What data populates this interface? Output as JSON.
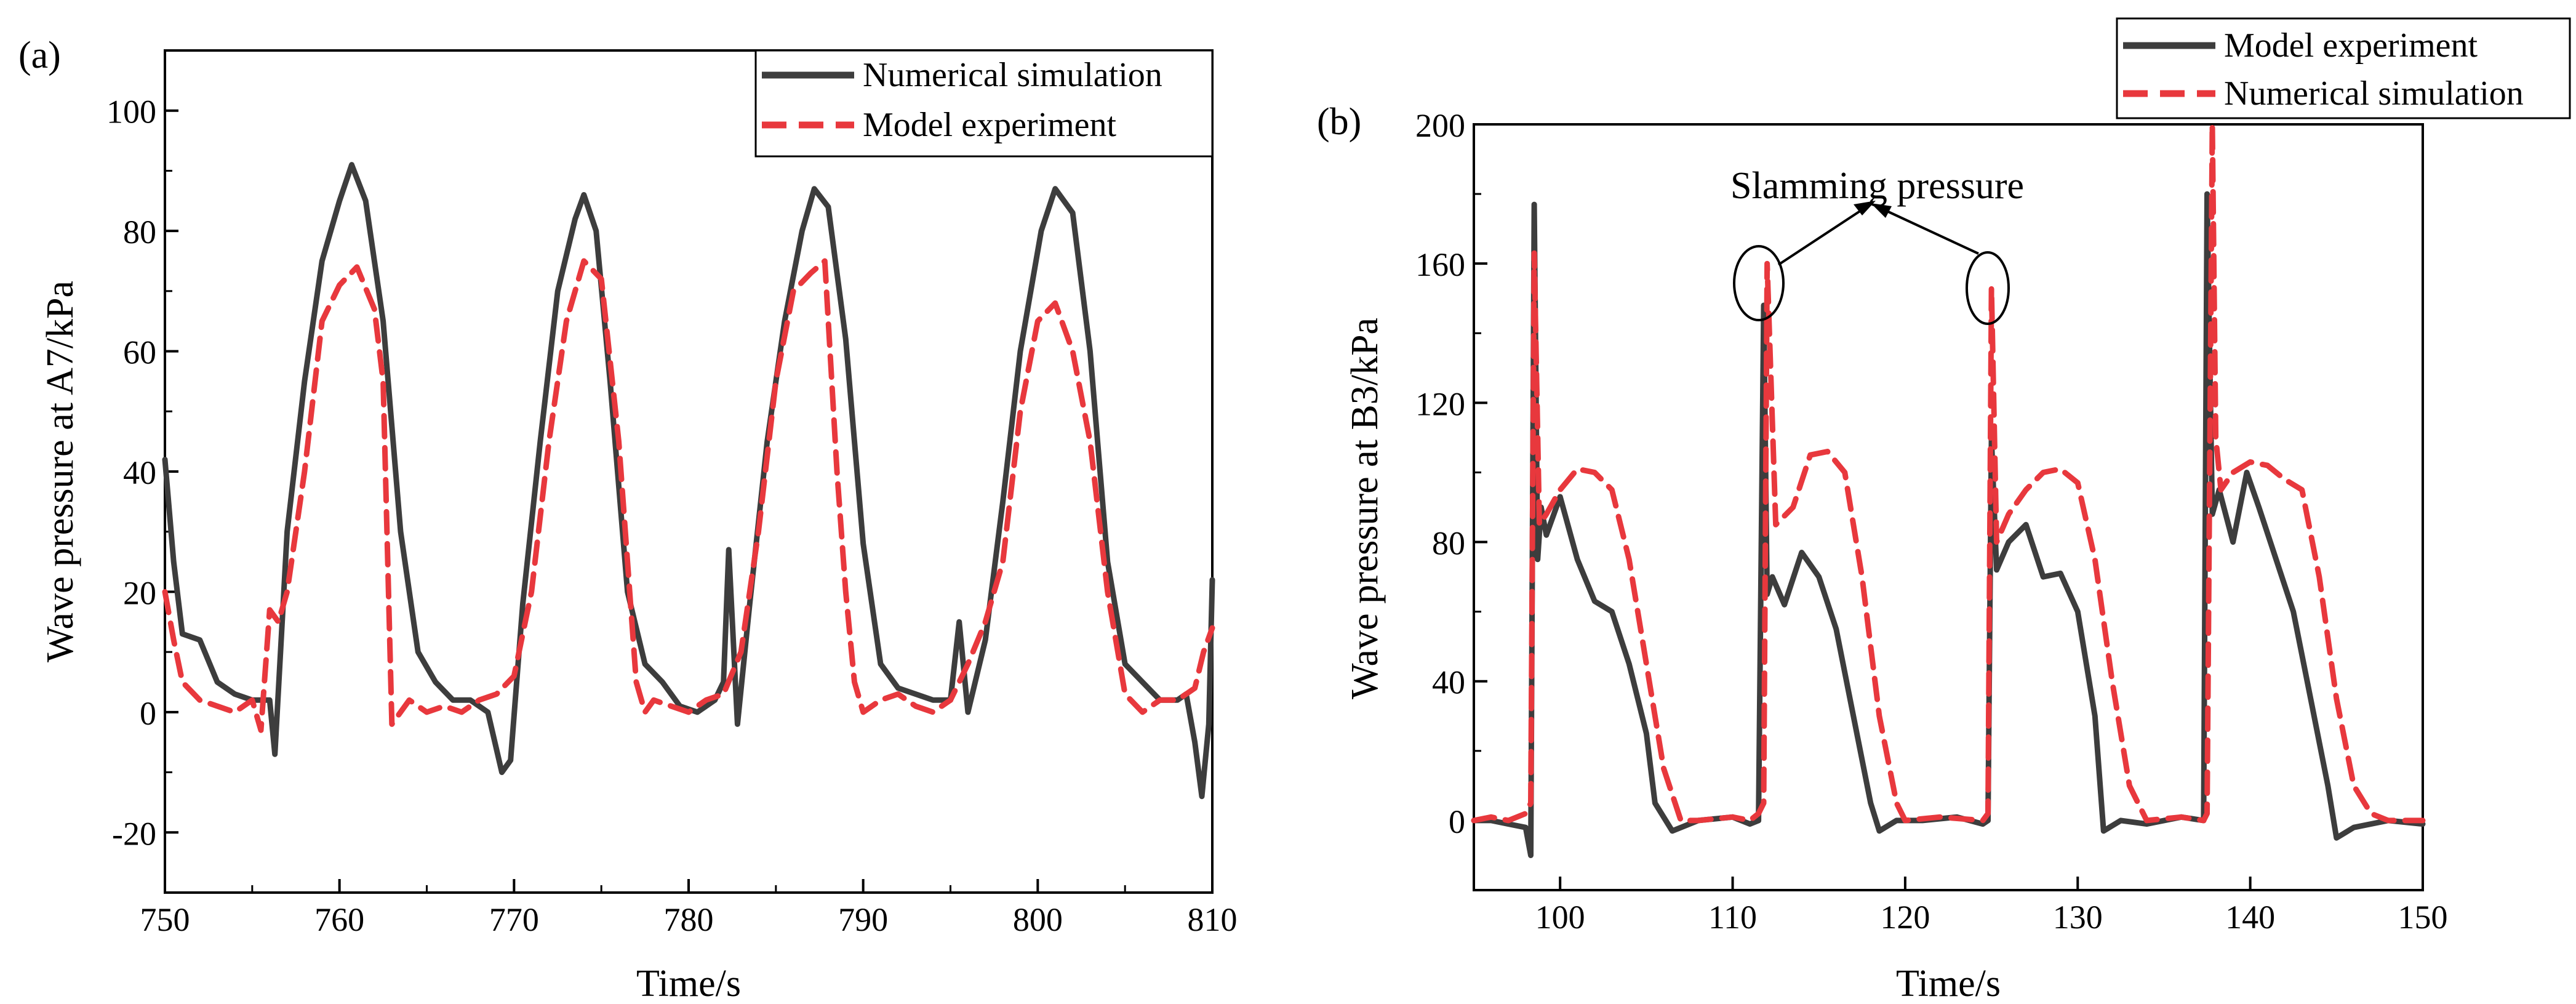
{
  "colors": {
    "dark": "#3d3d3d",
    "red": "#e8383d",
    "axis": "#000000"
  },
  "chart_data": [
    {
      "panel_label": "(a)",
      "type": "line",
      "xlabel": "Time/s",
      "ylabel": "Wave pressure at A7/kPa",
      "xlim": [
        750,
        810
      ],
      "ylim": [
        -30,
        110
      ],
      "xticks": [
        "750",
        "760",
        "770",
        "780",
        "790",
        "800",
        "810"
      ],
      "yticks": [
        "-20",
        "0",
        "20",
        "40",
        "60",
        "80",
        "100"
      ],
      "legend_position": "top-right",
      "series": [
        {
          "name": "Numerical simulation",
          "color": "#3d3d3d",
          "style": "solid",
          "x": [
            750.0,
            750.5,
            751,
            752,
            753,
            754,
            755,
            756,
            756.3,
            757,
            758,
            759,
            760,
            760.7,
            761.5,
            762.5,
            763.5,
            764.5,
            765.5,
            766.5,
            767.5,
            768.5,
            769.3,
            769.8,
            770.5,
            771.5,
            772.5,
            773.5,
            774.0,
            774.7,
            775.5,
            776.5,
            777.5,
            778.5,
            779.5,
            780.5,
            781.5,
            782.0,
            782.3,
            782.8,
            783.5,
            784.5,
            785.5,
            786.5,
            787.2,
            788,
            789,
            790,
            791,
            792,
            793,
            794,
            795,
            795.5,
            796,
            797,
            798,
            799,
            800.2,
            801,
            802,
            803,
            804,
            805,
            806,
            807,
            808,
            808.5,
            809,
            809.4,
            809.8,
            810
          ],
          "y": [
            42,
            25,
            13,
            12,
            5,
            3,
            2,
            2,
            -7,
            30,
            55,
            75,
            85,
            91,
            85,
            65,
            30,
            10,
            5,
            2,
            2,
            0,
            -10,
            -8,
            18,
            45,
            70,
            82,
            86,
            80,
            55,
            20,
            8,
            5,
            1,
            0,
            2,
            5,
            27,
            -2,
            18,
            45,
            65,
            80,
            87,
            84,
            62,
            28,
            8,
            4,
            3,
            2,
            2,
            15,
            0,
            12,
            35,
            60,
            80,
            87,
            83,
            60,
            25,
            8,
            5,
            2,
            2,
            3,
            -5,
            -14,
            -2,
            22
          ]
        },
        {
          "name": "Model experiment",
          "color": "#e8383d",
          "style": "dashed",
          "x": [
            750.0,
            750.5,
            751,
            752,
            753,
            754,
            755,
            755.5,
            756,
            756.5,
            757,
            758,
            759,
            760,
            761,
            762,
            762.5,
            763.0,
            764,
            765,
            766,
            767,
            768,
            769,
            770,
            771,
            772,
            773,
            774,
            775,
            776,
            777,
            777.5,
            778,
            779,
            780,
            781,
            782,
            783,
            784,
            785,
            786,
            787,
            787.8,
            788.5,
            789,
            789.5,
            790,
            791,
            792,
            793,
            794,
            795,
            796,
            797,
            798,
            799,
            800,
            801,
            802,
            803,
            804,
            805,
            806,
            807,
            808,
            809,
            809.5,
            810
          ],
          "y": [
            20,
            12,
            5,
            2,
            1,
            0,
            2,
            -3,
            17,
            15,
            20,
            40,
            65,
            71,
            74,
            67,
            55,
            -2,
            2,
            0,
            1,
            0,
            2,
            3,
            6,
            20,
            45,
            65,
            75,
            72,
            45,
            5,
            0,
            2,
            1,
            0,
            2,
            3,
            10,
            30,
            55,
            70,
            73,
            75,
            40,
            20,
            5,
            0,
            2,
            3,
            1,
            0,
            2,
            8,
            15,
            25,
            50,
            65,
            68,
            60,
            45,
            20,
            3,
            0,
            2,
            2,
            4,
            10,
            14
          ]
        }
      ]
    },
    {
      "panel_label": "(b)",
      "type": "line",
      "xlabel": "Time/s",
      "ylabel": "Wave pressure at B3/kPa",
      "xlim": [
        95,
        150
      ],
      "ylim": [
        -20,
        200
      ],
      "xticks": [
        "100",
        "110",
        "120",
        "130",
        "140",
        "150"
      ],
      "yticks": [
        "0",
        "40",
        "80",
        "120",
        "160",
        "200"
      ],
      "legend_position": "top-right",
      "annotation": "Slamming pressure",
      "series": [
        {
          "name": "Model experiment",
          "color": "#3d3d3d",
          "style": "solid",
          "x": [
            95,
            96,
            97,
            98,
            98.3,
            98.5,
            98.7,
            98.9,
            99.2,
            100,
            101,
            102,
            103,
            104,
            105,
            105.5,
            106.5,
            108,
            110,
            111,
            111.5,
            111.8,
            112.0,
            112.3,
            113,
            114,
            115,
            116,
            117,
            118,
            118.5,
            119.5,
            121,
            123,
            124.5,
            124.8,
            125.0,
            125.3,
            126,
            127,
            128,
            129,
            130,
            131,
            131.5,
            132.5,
            134,
            136,
            137.3,
            137.5,
            137.8,
            138.2,
            139,
            139.8,
            140.5,
            141.5,
            142.5,
            143.5,
            144.5,
            145,
            146,
            148,
            150
          ],
          "y": [
            0,
            0,
            -1,
            -2,
            -10,
            177,
            75,
            90,
            82,
            93,
            75,
            63,
            60,
            45,
            25,
            5,
            -3,
            0,
            1,
            -1,
            0,
            148,
            65,
            70,
            62,
            77,
            70,
            55,
            30,
            5,
            -3,
            0,
            0,
            1,
            -1,
            0,
            110,
            72,
            80,
            85,
            70,
            71,
            60,
            30,
            -3,
            0,
            -1,
            1,
            0,
            180,
            88,
            95,
            80,
            100,
            90,
            75,
            60,
            35,
            10,
            -5,
            -2,
            0,
            -1
          ]
        },
        {
          "name": "Numerical simulation",
          "color": "#e8383d",
          "style": "dashed",
          "x": [
            95,
            96,
            97,
            98,
            98.3,
            98.5,
            98.8,
            99.2,
            100,
            101,
            102,
            103,
            104,
            105,
            106,
            107,
            108,
            110,
            111,
            111.5,
            111.8,
            112.0,
            112.5,
            113.5,
            114.5,
            115.5,
            116.5,
            117.5,
            118.5,
            119.5,
            120,
            122,
            124.5,
            124.8,
            125.0,
            125.3,
            126,
            127,
            128,
            129,
            130,
            131,
            132,
            133,
            134,
            136,
            137.3,
            137.5,
            137.8,
            138.0,
            138.3,
            139,
            140,
            141,
            142,
            143,
            144,
            145,
            146,
            147,
            148,
            150
          ],
          "y": [
            0,
            1,
            0,
            2,
            5,
            163,
            85,
            88,
            95,
            101,
            100,
            95,
            75,
            45,
            15,
            0,
            0,
            1,
            0,
            2,
            5,
            160,
            85,
            90,
            105,
            106,
            100,
            70,
            30,
            5,
            0,
            1,
            0,
            2,
            153,
            80,
            88,
            95,
            100,
            101,
            97,
            75,
            40,
            10,
            0,
            1,
            0,
            2,
            200,
            110,
            95,
            100,
            103,
            102,
            98,
            95,
            70,
            35,
            10,
            2,
            0,
            0
          ]
        }
      ]
    }
  ]
}
